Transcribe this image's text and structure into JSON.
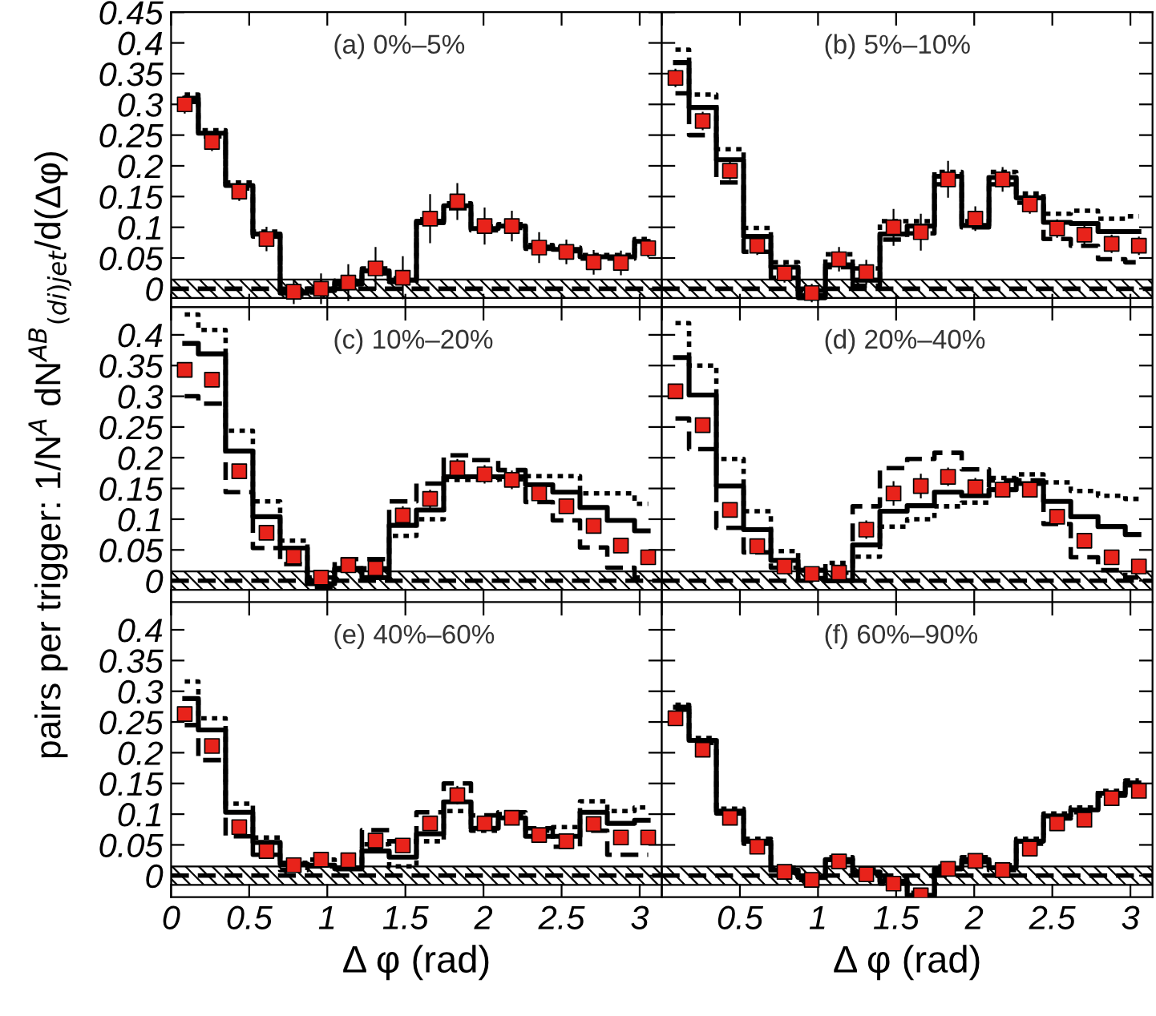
{
  "chart_data": [
    {
      "type": "scatter",
      "annotations": [
        "(a) 0%–5%"
      ],
      "x": [
        0.0873,
        0.2618,
        0.4363,
        0.6109,
        0.7854,
        0.96,
        1.1345,
        1.309,
        1.4835,
        1.6581,
        1.8326,
        2.0071,
        2.1817,
        2.3562,
        2.5307,
        2.7053,
        2.8798,
        3.0543
      ],
      "xlim": [
        0,
        3.1416
      ],
      "xticks": [
        0,
        0.5,
        1,
        1.5,
        2,
        2.5,
        3
      ],
      "ylim": [
        -0.03,
        0.45
      ],
      "yticks": [
        0,
        0.05,
        0.1,
        0.15,
        0.2,
        0.25,
        0.3,
        0.35,
        0.4,
        0.45
      ],
      "tick_labels": "y",
      "bands": [
        {
          "axis": "y",
          "from": -0.015,
          "to": 0.015,
          "color": "#000000"
        }
      ],
      "ref_lines": [
        {
          "axis": "y",
          "value": 0,
          "color": "#000000",
          "line_style": "dashed"
        }
      ],
      "series": [
        {
          "type": "step",
          "color": "#000000",
          "line_style": "dotted",
          "values": [
            0.316,
            0.258,
            0.173,
            0.093,
            -0.004,
            0.0,
            0.013,
            0.033,
            0.017,
            0.113,
            0.139,
            0.101,
            0.105,
            0.071,
            0.067,
            0.055,
            0.055,
            0.081
          ]
        },
        {
          "type": "step",
          "color": "#000000",
          "line_style": "dashed",
          "values": [
            0.304,
            0.248,
            0.163,
            0.085,
            -0.01,
            -0.006,
            0.007,
            0.025,
            0.011,
            0.107,
            0.131,
            0.095,
            0.099,
            0.065,
            0.061,
            0.049,
            0.049,
            0.073
          ]
        },
        {
          "type": "step",
          "color": "#000000",
          "line_style": "solid",
          "values": [
            0.31,
            0.253,
            0.168,
            0.089,
            -0.007,
            -0.003,
            0.01,
            0.029,
            0.014,
            0.11,
            0.135,
            0.098,
            0.102,
            0.068,
            0.064,
            0.052,
            0.052,
            0.077
          ]
        },
        {
          "color": "#e8231b",
          "marker": "square",
          "values": [
            0.3,
            0.239,
            0.158,
            0.081,
            -0.005,
            0.0,
            0.01,
            0.033,
            0.018,
            0.114,
            0.142,
            0.102,
            0.102,
            0.067,
            0.06,
            0.043,
            0.042,
            0.066
          ],
          "errors": [
            0.015,
            0.015,
            0.015,
            0.02,
            0.02,
            0.025,
            0.03,
            0.035,
            0.035,
            0.04,
            0.03,
            0.03,
            0.025,
            0.025,
            0.02,
            0.02,
            0.02,
            0.015
          ]
        }
      ]
    },
    {
      "type": "scatter",
      "annotations": [
        "(b) 5%–10%"
      ],
      "x": [
        0.0873,
        0.2618,
        0.4363,
        0.6109,
        0.7854,
        0.96,
        1.1345,
        1.309,
        1.4835,
        1.6581,
        1.8326,
        2.0071,
        2.1817,
        2.3562,
        2.5307,
        2.7053,
        2.8798,
        3.0543
      ],
      "xlim": [
        0,
        3.1416
      ],
      "xticks": [
        0,
        0.5,
        1,
        1.5,
        2,
        2.5,
        3
      ],
      "ylim": [
        -0.03,
        0.45
      ],
      "yticks": [
        0,
        0.05,
        0.1,
        0.15,
        0.2,
        0.25,
        0.3,
        0.35,
        0.4,
        0.45
      ],
      "tick_labels": false,
      "bands": [
        {
          "axis": "y",
          "from": -0.015,
          "to": 0.015,
          "color": "#000000"
        }
      ],
      "ref_lines": [
        {
          "axis": "y",
          "value": 0,
          "color": "#000000",
          "line_style": "dashed"
        }
      ],
      "series": [
        {
          "type": "step",
          "color": "#000000",
          "line_style": "dotted",
          "values": [
            0.389,
            0.316,
            0.227,
            0.099,
            0.043,
            -0.003,
            0.056,
            0.033,
            0.11,
            0.11,
            0.19,
            0.11,
            0.19,
            0.155,
            0.122,
            0.127,
            0.114,
            0.118
          ]
        },
        {
          "type": "step",
          "color": "#000000",
          "line_style": "dashed",
          "values": [
            0.318,
            0.25,
            0.173,
            0.06,
            0.018,
            -0.015,
            0.035,
            0.005,
            0.08,
            0.09,
            0.17,
            0.1,
            0.17,
            0.14,
            0.081,
            0.07,
            0.048,
            0.043
          ]
        },
        {
          "type": "step",
          "color": "#000000",
          "line_style": "solid",
          "values": [
            0.368,
            0.295,
            0.21,
            0.085,
            0.035,
            -0.011,
            0.039,
            0.014,
            0.089,
            0.102,
            0.183,
            0.103,
            0.181,
            0.148,
            0.108,
            0.106,
            0.093,
            0.093
          ]
        },
        {
          "color": "#e8231b",
          "marker": "square",
          "values": [
            0.343,
            0.273,
            0.192,
            0.07,
            0.025,
            -0.007,
            0.048,
            0.027,
            0.1,
            0.092,
            0.178,
            0.114,
            0.178,
            0.137,
            0.098,
            0.088,
            0.073,
            0.07
          ],
          "errors": [
            0.015,
            0.015,
            0.015,
            0.015,
            0.015,
            0.015,
            0.02,
            0.02,
            0.03,
            0.03,
            0.03,
            0.02,
            0.02,
            0.015,
            0.015,
            0.015,
            0.015,
            0.015
          ]
        }
      ]
    },
    {
      "type": "scatter",
      "annotations": [
        "(c) 10%–20%"
      ],
      "ylabel": "pairs per trigger: 1/N$^{A}$ dN$^{AB}$$_{(di)jet}$/d(Δφ)",
      "x": [
        0.0873,
        0.2618,
        0.4363,
        0.6109,
        0.7854,
        0.96,
        1.1345,
        1.309,
        1.4835,
        1.6581,
        1.8326,
        2.0071,
        2.1817,
        2.3562,
        2.5307,
        2.7053,
        2.8798,
        3.0543
      ],
      "xlim": [
        0,
        3.1416
      ],
      "xticks": [
        0,
        0.5,
        1,
        1.5,
        2,
        2.5,
        3
      ],
      "ylim": [
        -0.035,
        0.445
      ],
      "yticks": [
        0,
        0.05,
        0.1,
        0.15,
        0.2,
        0.25,
        0.3,
        0.35,
        0.4
      ],
      "tick_labels": "y",
      "bands": [
        {
          "axis": "y",
          "from": -0.015,
          "to": 0.015,
          "color": "#000000"
        }
      ],
      "ref_lines": [
        {
          "axis": "y",
          "value": 0,
          "color": "#000000",
          "line_style": "dashed"
        }
      ],
      "series": [
        {
          "type": "step",
          "color": "#000000",
          "line_style": "dotted",
          "values": [
            0.433,
            0.408,
            0.244,
            0.129,
            0.065,
            0.005,
            0.02,
            0.02,
            0.073,
            0.1,
            0.164,
            0.164,
            0.165,
            0.17,
            0.17,
            0.142,
            0.142,
            0.125
          ]
        },
        {
          "type": "step",
          "color": "#000000",
          "line_style": "dashed",
          "values": [
            0.3,
            0.288,
            0.144,
            0.053,
            0.027,
            -0.01,
            0.035,
            0.035,
            0.129,
            0.158,
            0.204,
            0.196,
            0.18,
            0.128,
            0.098,
            0.054,
            0.021,
            0.005
          ]
        },
        {
          "type": "step",
          "color": "#000000",
          "line_style": "solid",
          "values": [
            0.386,
            0.369,
            0.211,
            0.104,
            0.053,
            -0.005,
            0.02,
            0.005,
            0.09,
            0.115,
            0.169,
            0.169,
            0.169,
            0.156,
            0.144,
            0.119,
            0.098,
            0.081
          ]
        },
        {
          "color": "#e8231b",
          "marker": "square",
          "values": [
            0.343,
            0.327,
            0.178,
            0.078,
            0.039,
            0.005,
            0.025,
            0.02,
            0.106,
            0.133,
            0.183,
            0.173,
            0.164,
            0.142,
            0.121,
            0.089,
            0.057,
            0.038
          ],
          "errors": [
            0.012,
            0.012,
            0.012,
            0.012,
            0.012,
            0.012,
            0.012,
            0.012,
            0.015,
            0.015,
            0.015,
            0.015,
            0.015,
            0.012,
            0.012,
            0.012,
            0.012,
            0.012
          ]
        }
      ]
    },
    {
      "type": "scatter",
      "annotations": [
        "(d) 20%–40%"
      ],
      "x": [
        0.0873,
        0.2618,
        0.4363,
        0.6109,
        0.7854,
        0.96,
        1.1345,
        1.309,
        1.4835,
        1.6581,
        1.8326,
        2.0071,
        2.1817,
        2.3562,
        2.5307,
        2.7053,
        2.8798,
        3.0543
      ],
      "xlim": [
        0,
        3.1416
      ],
      "xticks": [
        0,
        0.5,
        1,
        1.5,
        2,
        2.5,
        3
      ],
      "ylim": [
        -0.035,
        0.445
      ],
      "yticks": [
        0,
        0.05,
        0.1,
        0.15,
        0.2,
        0.25,
        0.3,
        0.35,
        0.4
      ],
      "tick_labels": false,
      "bands": [
        {
          "axis": "y",
          "from": -0.015,
          "to": 0.015,
          "color": "#000000"
        }
      ],
      "ref_lines": [
        {
          "axis": "y",
          "value": 0,
          "color": "#000000",
          "line_style": "dashed"
        }
      ],
      "series": [
        {
          "type": "step",
          "color": "#000000",
          "line_style": "dotted",
          "values": [
            0.419,
            0.35,
            0.198,
            0.113,
            0.048,
            0.019,
            0.029,
            0.039,
            0.088,
            0.1,
            0.121,
            0.127,
            0.167,
            0.173,
            0.16,
            0.146,
            0.138,
            0.133
          ]
        },
        {
          "type": "step",
          "color": "#000000",
          "line_style": "dashed",
          "values": [
            0.264,
            0.214,
            0.086,
            0.046,
            0.021,
            0.004,
            0.013,
            0.121,
            0.183,
            0.198,
            0.208,
            0.181,
            0.163,
            0.163,
            0.092,
            0.038,
            0.017,
            0.005
          ]
        },
        {
          "type": "step",
          "color": "#000000",
          "line_style": "solid",
          "values": [
            0.363,
            0.302,
            0.154,
            0.083,
            0.033,
            0.017,
            0.0,
            0.058,
            0.113,
            0.122,
            0.144,
            0.138,
            0.148,
            0.158,
            0.129,
            0.104,
            0.088,
            0.075
          ]
        },
        {
          "color": "#e8231b",
          "marker": "square",
          "values": [
            0.308,
            0.253,
            0.115,
            0.056,
            0.023,
            0.011,
            0.013,
            0.083,
            0.142,
            0.154,
            0.169,
            0.152,
            0.148,
            0.148,
            0.104,
            0.065,
            0.038,
            0.023
          ],
          "errors": [
            0.012,
            0.012,
            0.012,
            0.012,
            0.012,
            0.012,
            0.012,
            0.015,
            0.02,
            0.02,
            0.015,
            0.015,
            0.012,
            0.012,
            0.012,
            0.012,
            0.012,
            0.012
          ]
        }
      ]
    },
    {
      "type": "scatter",
      "annotations": [
        "(e) 40%–60%"
      ],
      "xlabel": "Δ φ (rad)",
      "x": [
        0.0873,
        0.2618,
        0.4363,
        0.6109,
        0.7854,
        0.96,
        1.1345,
        1.309,
        1.4835,
        1.6581,
        1.8326,
        2.0071,
        2.1817,
        2.3562,
        2.5307,
        2.7053,
        2.8798,
        3.0543
      ],
      "xlim": [
        0,
        3.1416
      ],
      "xticks": [
        0,
        0.5,
        1,
        1.5,
        2,
        2.5,
        3
      ],
      "ylim": [
        -0.035,
        0.445
      ],
      "yticks": [
        0,
        0.05,
        0.1,
        0.15,
        0.2,
        0.25,
        0.3,
        0.35,
        0.4
      ],
      "bands": [
        {
          "axis": "y",
          "from": -0.015,
          "to": 0.015,
          "color": "#000000"
        }
      ],
      "ref_lines": [
        {
          "axis": "y",
          "value": 0,
          "color": "#000000",
          "line_style": "dashed"
        }
      ],
      "series": [
        {
          "type": "step",
          "color": "#000000",
          "line_style": "dotted",
          "values": [
            0.316,
            0.256,
            0.117,
            0.062,
            0.021,
            0.026,
            0.013,
            0.051,
            0.015,
            0.056,
            0.105,
            0.073,
            0.1,
            0.073,
            0.079,
            0.121,
            0.105,
            0.111
          ]
        },
        {
          "type": "step",
          "color": "#000000",
          "line_style": "dashed",
          "values": [
            0.245,
            0.188,
            0.064,
            0.034,
            0.009,
            0.015,
            0.013,
            0.074,
            0.056,
            0.103,
            0.15,
            0.098,
            0.103,
            0.077,
            0.047,
            0.073,
            0.034,
            0.034
          ]
        },
        {
          "type": "step",
          "color": "#000000",
          "line_style": "solid",
          "values": [
            0.288,
            0.237,
            0.103,
            0.054,
            0.019,
            0.017,
            0.011,
            0.04,
            0.03,
            0.068,
            0.12,
            0.077,
            0.094,
            0.064,
            0.064,
            0.103,
            0.085,
            0.09
          ]
        },
        {
          "color": "#e8231b",
          "marker": "square",
          "values": [
            0.263,
            0.211,
            0.079,
            0.04,
            0.017,
            0.026,
            0.025,
            0.057,
            0.049,
            0.085,
            0.131,
            0.085,
            0.094,
            0.066,
            0.056,
            0.084,
            0.062,
            0.062
          ],
          "errors": [
            0.01,
            0.01,
            0.01,
            0.01,
            0.01,
            0.01,
            0.01,
            0.012,
            0.012,
            0.012,
            0.015,
            0.012,
            0.01,
            0.01,
            0.01,
            0.01,
            0.01,
            0.01
          ]
        }
      ]
    },
    {
      "type": "scatter",
      "annotations": [
        "(f) 60%–90%"
      ],
      "xlabel": "Δ φ (rad)",
      "x": [
        0.0873,
        0.2618,
        0.4363,
        0.6109,
        0.7854,
        0.96,
        1.1345,
        1.309,
        1.4835,
        1.6581,
        1.8326,
        2.0071,
        2.1817,
        2.3562,
        2.5307,
        2.7053,
        2.8798,
        3.0543
      ],
      "xlim": [
        0,
        3.1416
      ],
      "xticks": [
        {
          "value": 0,
          "label": null
        },
        0.5,
        1,
        1.5,
        2,
        2.5,
        3
      ],
      "ylim": [
        -0.035,
        0.445
      ],
      "yticks": [
        0,
        0.05,
        0.1,
        0.15,
        0.2,
        0.25,
        0.3,
        0.35,
        0.4
      ],
      "tick_labels": "x",
      "bands": [
        {
          "axis": "y",
          "from": -0.015,
          "to": 0.015,
          "color": "#000000"
        }
      ],
      "ref_lines": [
        {
          "axis": "y",
          "value": 0,
          "color": "#000000",
          "line_style": "dashed"
        }
      ],
      "series": [
        {
          "type": "step",
          "color": "#000000",
          "line_style": "dotted",
          "values": [
            0.278,
            0.224,
            0.109,
            0.06,
            0.013,
            0.001,
            0.03,
            0.01,
            -0.005,
            -0.028,
            0.015,
            0.03,
            0.017,
            0.06,
            0.101,
            0.111,
            0.138,
            0.155
          ]
        },
        {
          "type": "step",
          "color": "#000000",
          "line_style": "dashed",
          "values": [
            0.27,
            0.216,
            0.101,
            0.052,
            0.005,
            -0.007,
            0.022,
            0.002,
            -0.013,
            -0.034,
            0.007,
            0.022,
            0.009,
            0.052,
            0.093,
            0.103,
            0.13,
            0.147
          ]
        },
        {
          "type": "step",
          "color": "#000000",
          "line_style": "solid",
          "values": [
            0.274,
            0.22,
            0.105,
            0.056,
            0.009,
            -0.003,
            0.026,
            0.006,
            -0.009,
            -0.032,
            0.011,
            0.026,
            0.013,
            0.056,
            0.097,
            0.107,
            0.134,
            0.151
          ]
        },
        {
          "color": "#e8231b",
          "marker": "square",
          "values": [
            0.256,
            0.205,
            0.094,
            0.047,
            0.006,
            -0.007,
            0.023,
            0.002,
            -0.013,
            -0.032,
            0.011,
            0.024,
            0.009,
            0.044,
            0.085,
            0.091,
            0.126,
            0.138
          ],
          "errors": [
            0.008,
            0.008,
            0.008,
            0.008,
            0.008,
            0.008,
            0.01,
            0.01,
            0.01,
            0.01,
            0.01,
            0.01,
            0.01,
            0.008,
            0.008,
            0.008,
            0.008,
            0.008
          ]
        }
      ]
    }
  ]
}
